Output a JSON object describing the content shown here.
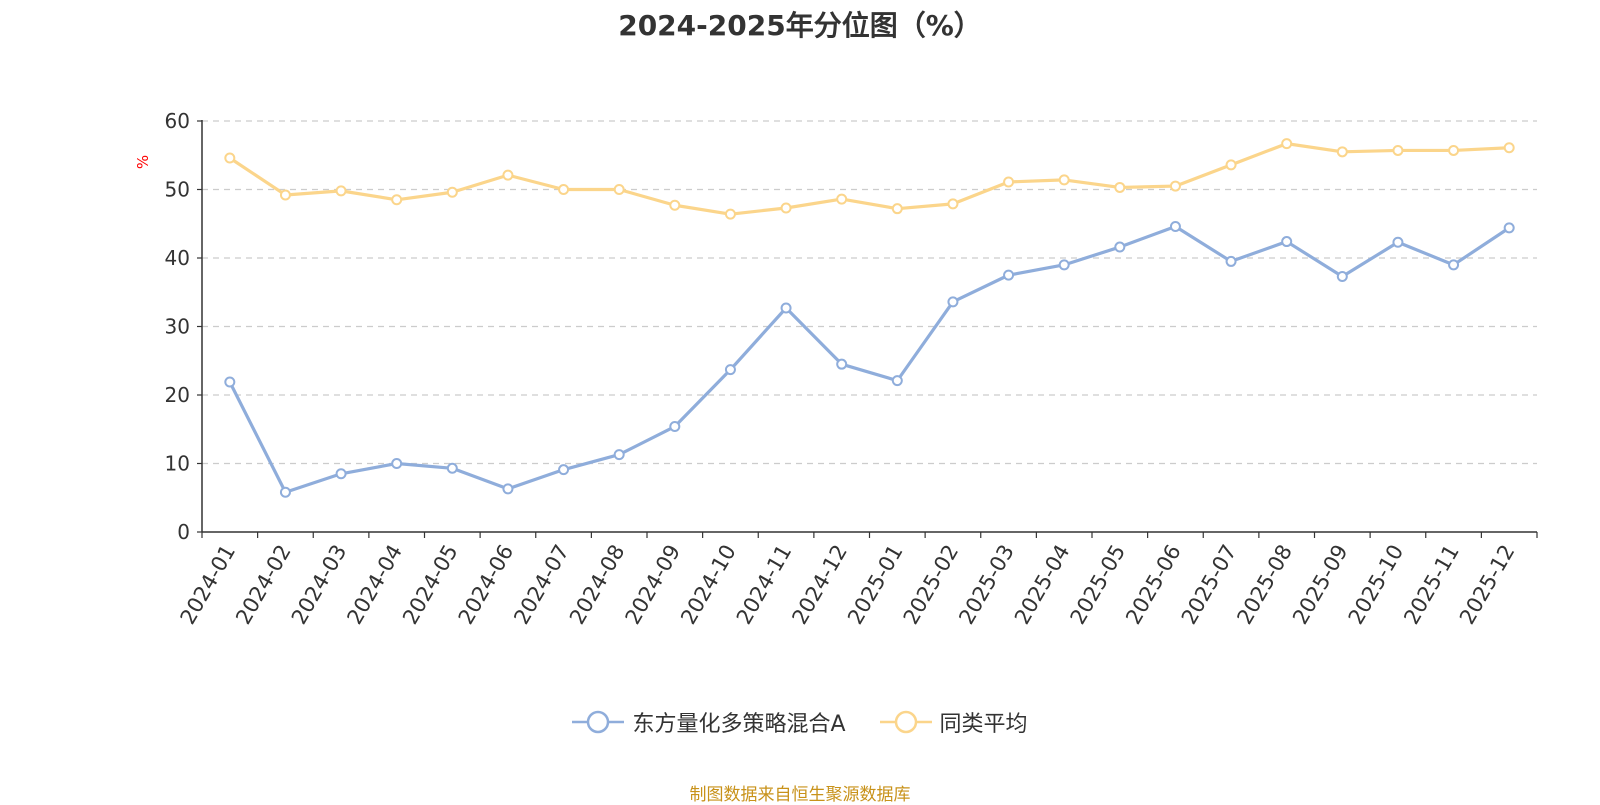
{
  "chart_data": {
    "type": "line",
    "title": "2024-2025年分位图（%）",
    "ylabel": "%",
    "xlabel": "",
    "ylim": [
      0,
      60
    ],
    "yticks": [
      0,
      10,
      20,
      30,
      40,
      50,
      60
    ],
    "grid": true,
    "categories": [
      "2024-01",
      "2024-02",
      "2024-03",
      "2024-04",
      "2024-05",
      "2024-06",
      "2024-07",
      "2024-08",
      "2024-09",
      "2024-10",
      "2024-11",
      "2024-12",
      "2025-01",
      "2025-02",
      "2025-03",
      "2025-04",
      "2025-05",
      "2025-06",
      "2025-07",
      "2025-08",
      "2025-09",
      "2025-10",
      "2025-11",
      "2025-12"
    ],
    "series": [
      {
        "name": "东方量化多策略混合A",
        "color": "#8faddb",
        "values": [
          21.9,
          5.8,
          8.5,
          10.0,
          9.3,
          6.3,
          9.1,
          11.3,
          15.4,
          23.7,
          32.7,
          24.5,
          22.1,
          33.6,
          37.5,
          39.0,
          41.6,
          44.6,
          39.5,
          42.4,
          37.3,
          42.3,
          39.0,
          44.4
        ]
      },
      {
        "name": "同类平均",
        "color": "#fbd58b",
        "values": [
          54.6,
          49.2,
          49.8,
          48.5,
          49.6,
          52.1,
          50.0,
          50.0,
          47.7,
          46.4,
          47.3,
          48.6,
          47.2,
          47.9,
          51.1,
          51.4,
          50.3,
          50.5,
          53.6,
          56.7,
          55.5,
          55.7,
          55.7,
          56.1
        ]
      }
    ],
    "legend_position": "bottom-center",
    "source_note": "制图数据来自恒生聚源数据库"
  }
}
